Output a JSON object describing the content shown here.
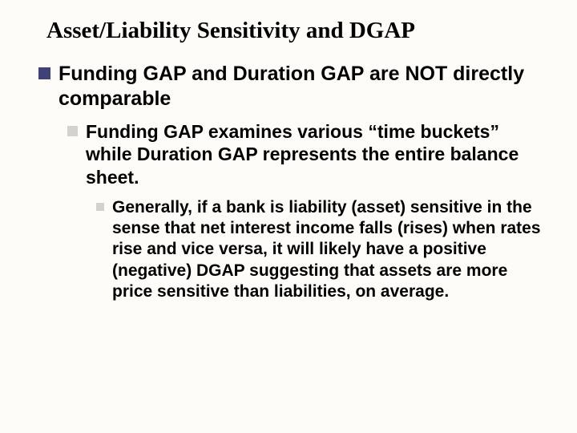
{
  "slide": {
    "title": "Asset/Liability Sensitivity and DGAP",
    "background_color": "#fdfcf9",
    "title_font": "Times New Roman",
    "title_color": "#000000",
    "title_fontsize": 29,
    "body_font": "Arial",
    "body_color": "#000000",
    "bullets": {
      "level1": {
        "text": "Funding GAP and Duration GAP are NOT directly comparable",
        "square_color": "#41417a",
        "square_size": 15,
        "fontsize": 25
      },
      "level2": {
        "text": "Funding GAP examines various “time buckets” while Duration GAP represents the entire balance sheet.",
        "square_color": "#d4d2d0",
        "square_size": 13,
        "fontsize": 23
      },
      "level3": {
        "text": "Generally, if a bank is liability (asset) sensitive in the sense that net interest income falls (rises) when rates rise and vice versa, it will likely have a positive (negative) DGAP suggesting that assets are more price sensitive than liabilities, on average.",
        "square_color": "#d4d2d0",
        "square_size": 10,
        "fontsize": 21
      }
    }
  }
}
